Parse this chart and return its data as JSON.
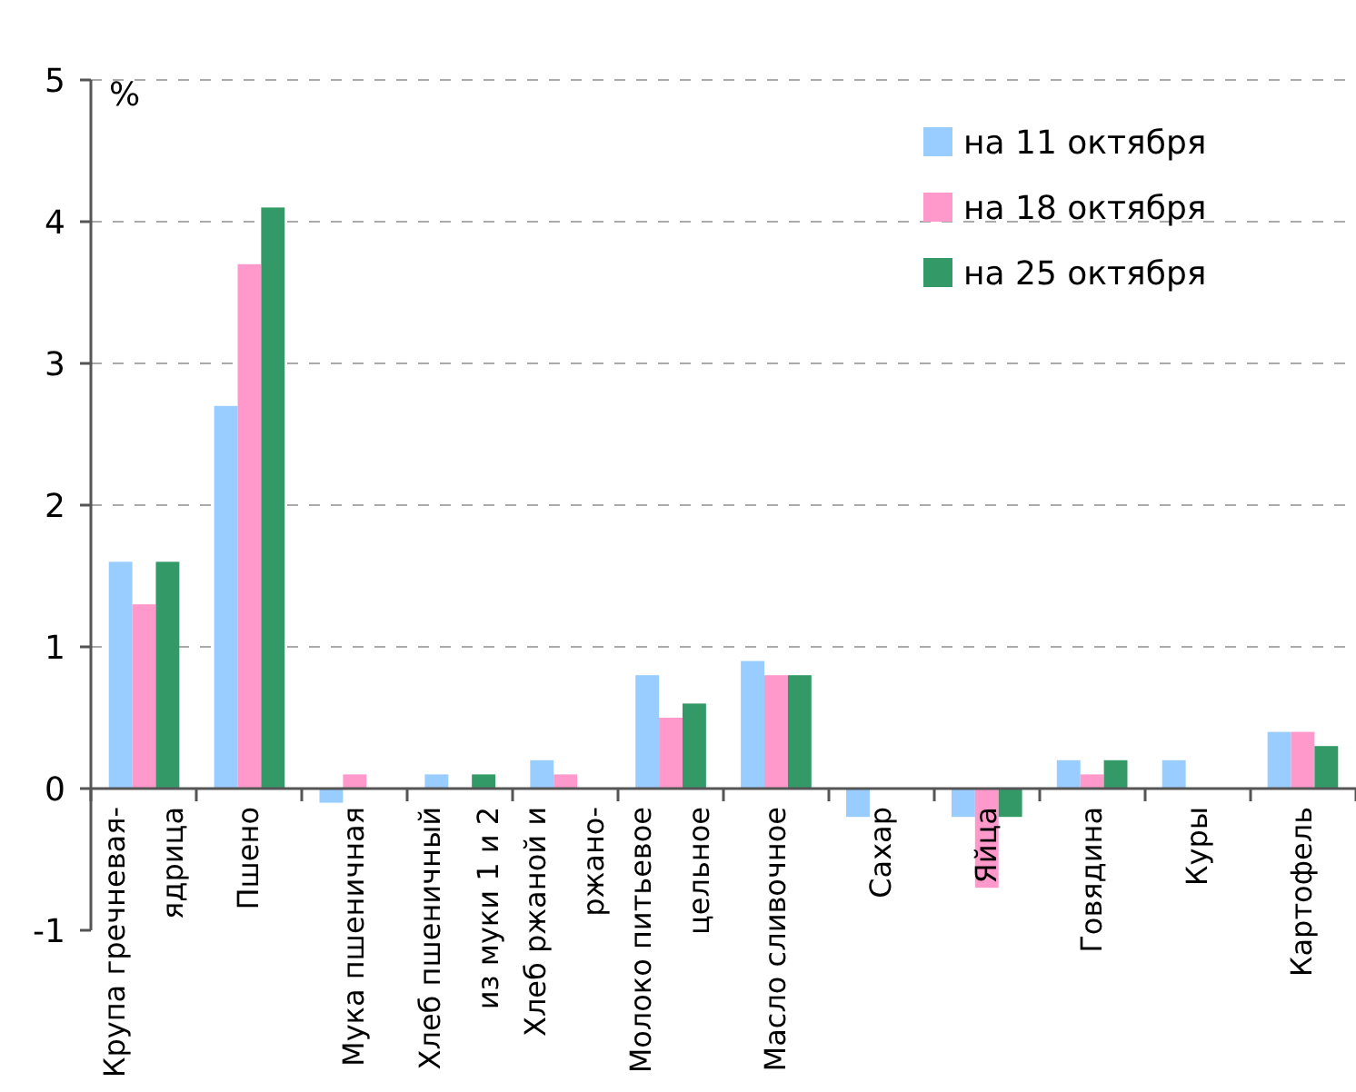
{
  "chart_data": {
    "type": "bar",
    "ylabel": "%",
    "categories": [
      "Крупа гречневая-\nядрица",
      "Пшено",
      "Мука пшеничная",
      "Хлеб пшеничный\nиз муки 1 и 2",
      "Хлеб ржаной и\nржано-",
      "Молоко питьевое\nцельное",
      "Масло сливочное",
      "Сахар",
      "Яйца",
      "Говядина",
      "Куры",
      "Картофель"
    ],
    "series": [
      {
        "name": "на 11 октября",
        "color": "#99ccff",
        "values": [
          1.6,
          2.7,
          -0.1,
          0.1,
          0.2,
          0.8,
          0.9,
          -0.2,
          -0.2,
          0.2,
          0.2,
          0.4
        ]
      },
      {
        "name": "на 18 октября",
        "color": "#ff99cc",
        "values": [
          1.3,
          3.7,
          0.1,
          0,
          0.1,
          0.5,
          0.8,
          0,
          -0.7,
          0.1,
          0,
          0.4
        ]
      },
      {
        "name": "на 25 октября",
        "color": "#339966",
        "values": [
          1.6,
          4.1,
          0,
          0.1,
          0,
          0.6,
          0.8,
          0,
          -0.2,
          0.2,
          0,
          0.3
        ]
      }
    ],
    "ylim": [
      -1,
      5
    ],
    "yticks": [
      -1,
      0,
      1,
      2,
      3,
      4,
      5
    ],
    "grid": "y",
    "legend": "top right"
  }
}
